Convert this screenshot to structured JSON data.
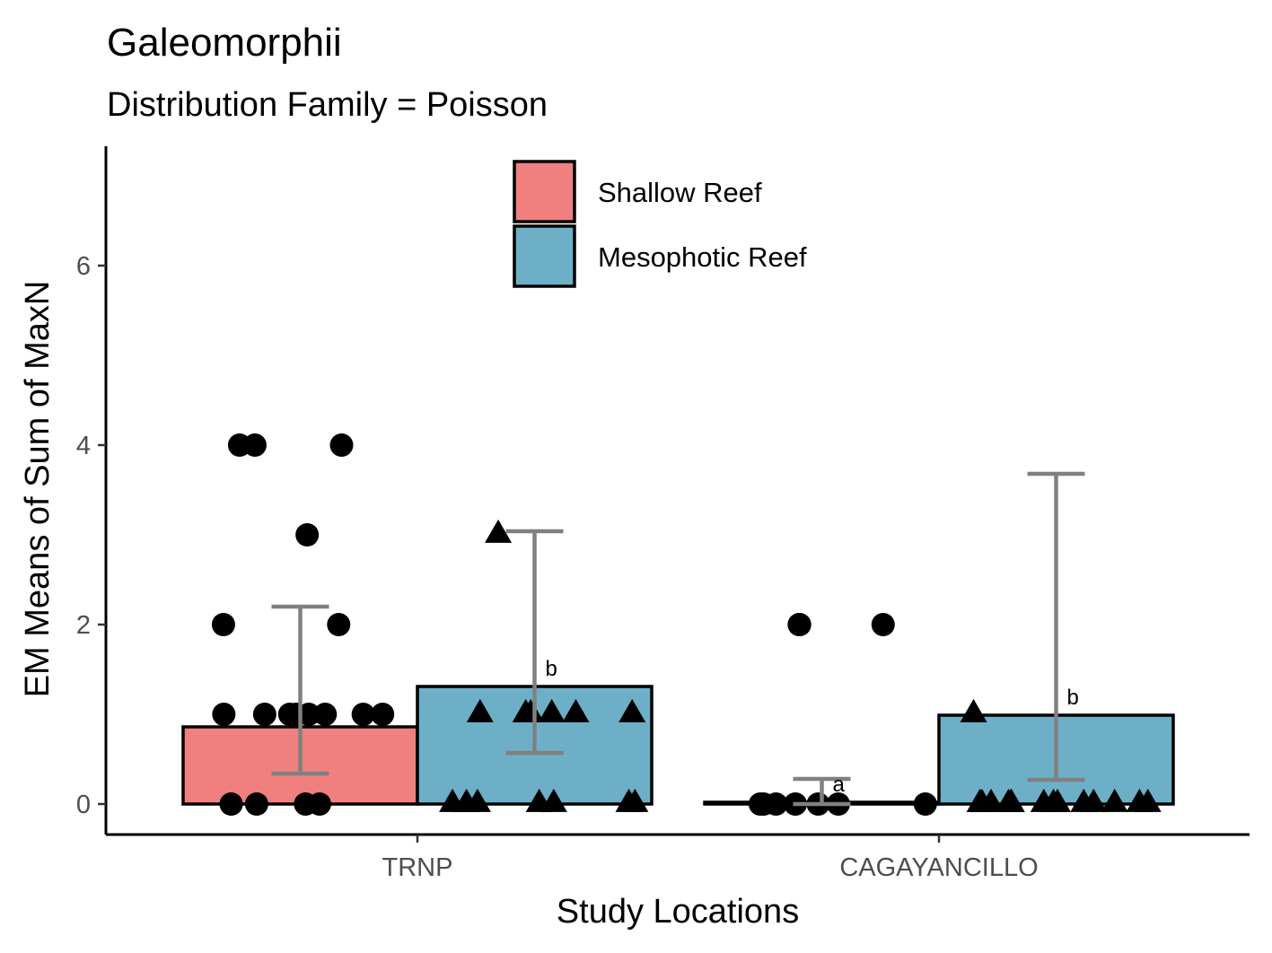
{
  "chart_data": {
    "type": "bar",
    "title": "Galeomorphii",
    "subtitle": "Distribution Family = Poisson",
    "xlabel": "Study Locations",
    "ylabel": "EM Means of Sum of MaxN",
    "categories": [
      "TRNP",
      "CAGAYANCILLO"
    ],
    "ylim": [
      -0.35,
      7.35
    ],
    "yticks": [
      0,
      2,
      4,
      6
    ],
    "grid": false,
    "legend_position": "top-center",
    "series": [
      {
        "name": "Shallow Reef",
        "color": "#F08080",
        "marker": "circle",
        "values": [
          0.86,
          0.02
        ],
        "error_low": [
          0.34,
          0.0
        ],
        "error_high": [
          2.2,
          0.28
        ],
        "sig_labels": [
          "",
          "a"
        ],
        "points": [
          [
            0.0,
            0.0,
            0.0,
            0.0,
            1.0,
            1.0,
            1.0,
            1.0,
            1.0,
            1.0,
            1.0,
            1.0,
            2.0,
            2.0,
            3.0,
            4.0,
            4.0,
            4.0
          ],
          [
            0.0,
            0.0,
            0.0,
            0.0,
            0.0,
            0.0,
            0.0,
            2.0,
            2.0,
            2.0
          ]
        ]
      },
      {
        "name": "Mesophotic Reef",
        "color": "#6EAFC8",
        "marker": "triangle",
        "values": [
          1.31,
          0.99
        ],
        "error_low": [
          0.57,
          0.27
        ],
        "error_high": [
          3.04,
          3.68
        ],
        "sig_labels": [
          "b",
          "b"
        ],
        "points": [
          [
            0.0,
            0.0,
            0.0,
            0.0,
            0.0,
            0.0,
            0.0,
            1.0,
            1.0,
            1.0,
            1.0,
            1.0,
            1.0,
            3.0
          ],
          [
            0.0,
            0.0,
            0.0,
            0.0,
            0.0,
            0.0,
            0.0,
            0.0,
            0.0,
            0.0,
            0.0,
            0.0,
            0.0,
            0.0,
            1.0
          ]
        ]
      }
    ],
    "error_bar_color": "#808080"
  }
}
